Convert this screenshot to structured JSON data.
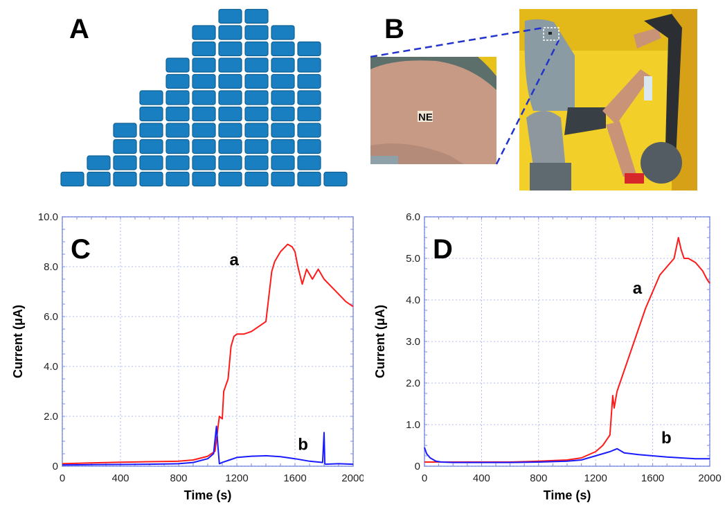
{
  "panels": {
    "a": {
      "letter": "A"
    },
    "b": {
      "letter": "B",
      "patch_label": "NE"
    }
  },
  "colors": {
    "block": "#1a7fc1",
    "block_edge": "#0f5f92",
    "series_a": "#ff1a1a",
    "series_b": "#1a1aff",
    "grid": "#9aa9e8",
    "frame": "#7a88e0",
    "callout": "#2233cc"
  },
  "chart_data": [
    {
      "id": "C",
      "panel_letter": "C",
      "type": "line",
      "xlabel": "Time (s)",
      "ylabel": "Current (μA)",
      "xlim": [
        0,
        2000
      ],
      "ylim": [
        0,
        10
      ],
      "x_ticks": [
        "0",
        "400",
        "800",
        "1200",
        "1600",
        "2000"
      ],
      "y_ticks": [
        "0",
        "2.0",
        "4.0",
        "6.0",
        "8.0",
        "10.0"
      ],
      "grid": true,
      "series": [
        {
          "name": "a",
          "color": "#ff1a1a",
          "x": [
            0,
            200,
            400,
            600,
            800,
            900,
            1000,
            1050,
            1080,
            1100,
            1110,
            1140,
            1160,
            1180,
            1200,
            1250,
            1300,
            1350,
            1400,
            1420,
            1440,
            1460,
            1500,
            1550,
            1580,
            1600,
            1620,
            1650,
            1680,
            1700,
            1720,
            1760,
            1800,
            1850,
            1900,
            1950,
            2000
          ],
          "y": [
            0.1,
            0.13,
            0.16,
            0.18,
            0.2,
            0.25,
            0.4,
            0.6,
            2.0,
            1.9,
            3.0,
            3.5,
            4.8,
            5.2,
            5.3,
            5.3,
            5.4,
            5.6,
            5.8,
            6.8,
            7.8,
            8.2,
            8.6,
            8.9,
            8.8,
            8.6,
            8.0,
            7.3,
            7.9,
            7.7,
            7.5,
            7.9,
            7.5,
            7.2,
            6.9,
            6.6,
            6.4
          ]
        },
        {
          "name": "b",
          "color": "#1a1aff",
          "x": [
            0,
            200,
            400,
            600,
            800,
            900,
            1000,
            1040,
            1060,
            1070,
            1080,
            1100,
            1150,
            1200,
            1300,
            1400,
            1500,
            1600,
            1700,
            1790,
            1800,
            1805,
            1810,
            1900,
            2000
          ],
          "y": [
            0.05,
            0.06,
            0.07,
            0.08,
            0.1,
            0.15,
            0.3,
            0.5,
            1.6,
            0.8,
            0.1,
            0.15,
            0.25,
            0.35,
            0.4,
            0.42,
            0.38,
            0.3,
            0.2,
            0.15,
            1.35,
            0.1,
            0.08,
            0.1,
            0.08
          ]
        }
      ]
    },
    {
      "id": "D",
      "panel_letter": "D",
      "type": "line",
      "xlabel": "Time (s)",
      "ylabel": "Current (μA)",
      "xlim": [
        0,
        2000
      ],
      "ylim": [
        0,
        6
      ],
      "x_ticks": [
        "0",
        "400",
        "800",
        "1200",
        "1600",
        "2000"
      ],
      "y_ticks": [
        "0",
        "1.0",
        "2.0",
        "3.0",
        "4.0",
        "5.0",
        "6.0"
      ],
      "grid": true,
      "series": [
        {
          "name": "a",
          "color": "#ff1a1a",
          "x": [
            0,
            200,
            400,
            600,
            800,
            1000,
            1100,
            1200,
            1250,
            1300,
            1320,
            1330,
            1340,
            1350,
            1400,
            1450,
            1500,
            1550,
            1600,
            1650,
            1700,
            1750,
            1780,
            1800,
            1820,
            1850,
            1900,
            1950,
            1980,
            2000
          ],
          "y": [
            0.1,
            0.1,
            0.1,
            0.1,
            0.12,
            0.15,
            0.2,
            0.35,
            0.5,
            0.75,
            1.7,
            1.4,
            1.6,
            1.8,
            2.3,
            2.8,
            3.3,
            3.8,
            4.2,
            4.6,
            4.8,
            5.0,
            5.5,
            5.2,
            5.0,
            5.0,
            4.9,
            4.7,
            4.5,
            4.4
          ]
        },
        {
          "name": "b",
          "color": "#1a1aff",
          "x": [
            0,
            15,
            40,
            80,
            120,
            200,
            400,
            600,
            800,
            1000,
            1100,
            1200,
            1300,
            1350,
            1400,
            1500,
            1600,
            1700,
            1800,
            1900,
            2000
          ],
          "y": [
            0.45,
            0.3,
            0.2,
            0.12,
            0.1,
            0.09,
            0.09,
            0.09,
            0.1,
            0.12,
            0.15,
            0.25,
            0.35,
            0.42,
            0.32,
            0.28,
            0.25,
            0.22,
            0.2,
            0.18,
            0.18
          ]
        }
      ]
    }
  ]
}
